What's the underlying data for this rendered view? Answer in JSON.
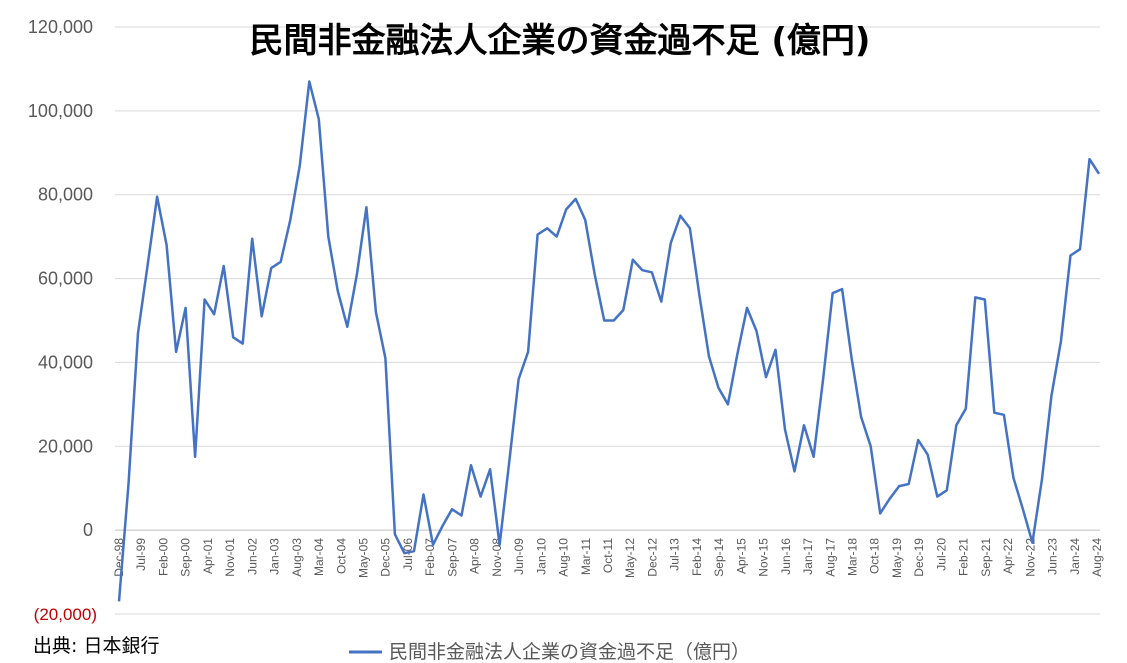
{
  "chart_data": {
    "type": "line",
    "title": "民間非金融法人企業の資金過不足 (億円)",
    "ylim": [
      -20000,
      120000
    ],
    "yticks": [
      {
        "value": 120000,
        "label": "120,000"
      },
      {
        "value": 100000,
        "label": "100,000"
      },
      {
        "value": 80000,
        "label": "80,000"
      },
      {
        "value": 60000,
        "label": "60,000"
      },
      {
        "value": 40000,
        "label": "40,000"
      },
      {
        "value": 20000,
        "label": "20,000"
      },
      {
        "value": 0,
        "label": "0"
      },
      {
        "value": -20000,
        "label": "(20,000)"
      }
    ],
    "x_tick_labels": [
      "Dec-98",
      "Jul-99",
      "Feb-00",
      "Sep-00",
      "Apr-01",
      "Nov-01",
      "Jun-02",
      "Jan-03",
      "Aug-03",
      "Mar-04",
      "Oct-04",
      "May-05",
      "Dec-05",
      "Jul-06",
      "Feb-07",
      "Sep-07",
      "Apr-08",
      "Nov-08",
      "Jun-09",
      "Jan-10",
      "Aug-10",
      "Mar-11",
      "Oct-11",
      "May-12",
      "Dec-12",
      "Jul-13",
      "Feb-14",
      "Sep-14",
      "Apr-15",
      "Nov-15",
      "Jun-16",
      "Jan-17",
      "Aug-17",
      "Mar-18",
      "Oct-18",
      "May-19",
      "Dec-19",
      "Jul-20",
      "Feb-21",
      "Sep-21",
      "Apr-22",
      "Nov-22",
      "Jun-23",
      "Jan-24",
      "Aug-24"
    ],
    "grid": true,
    "legend_position": "bottom",
    "series": [
      {
        "name": "民間非金融法人企業の資金過不足（億円）",
        "color": "#4472c4",
        "values": [
          -17000,
          11000,
          47000,
          63000,
          79500,
          68000,
          42500,
          53000,
          17500,
          55000,
          51500,
          63000,
          46000,
          44500,
          69500,
          51000,
          62500,
          64000,
          74000,
          87000,
          107000,
          98000,
          70000,
          57000,
          48500,
          61000,
          77000,
          52000,
          41000,
          -1000,
          -5500,
          -5000,
          8500,
          -3500,
          1000,
          5000,
          3500,
          15500,
          8000,
          14500,
          -3500,
          16000,
          36000,
          42500,
          70500,
          72000,
          70000,
          76500,
          79000,
          74000,
          61000,
          50000,
          50000,
          52500,
          64500,
          62000,
          61500,
          54500,
          68500,
          75000,
          72000,
          56000,
          41500,
          34000,
          30000,
          42000,
          53000,
          47500,
          36500,
          43000,
          24000,
          14000,
          25000,
          17500,
          36000,
          56500,
          57500,
          41000,
          27000,
          20000,
          4000,
          7500,
          10500,
          11000,
          21500,
          18000,
          8000,
          9500,
          25000,
          29000,
          55500,
          55000,
          28000,
          27500,
          12500,
          5000,
          -3000,
          12000,
          32000,
          45000,
          65500,
          67000,
          88500,
          85000
        ]
      }
    ]
  },
  "source_label": "出典: 日本銀行"
}
